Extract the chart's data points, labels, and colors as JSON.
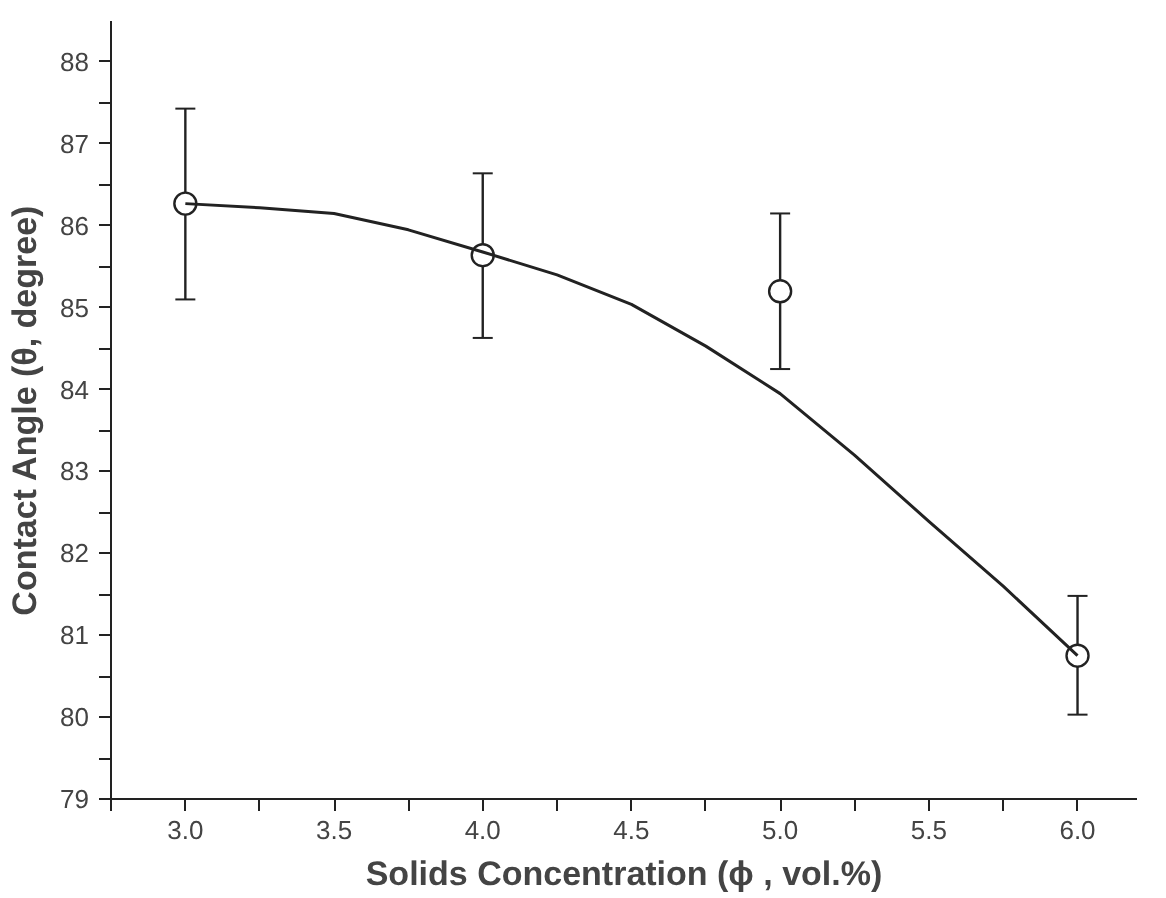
{
  "chart_data": {
    "type": "scatter",
    "xlabel": "Solids Concentration (ϕ , vol.%)",
    "ylabel": "Contact Angle (θ, degree)",
    "xlim": [
      2.75,
      6.2
    ],
    "ylim": [
      79,
      88.5
    ],
    "xticks": [
      {
        "value": 2.75,
        "label": null
      },
      {
        "value": 3,
        "label": "3.0"
      },
      {
        "value": 3.25,
        "label": null
      },
      3.5,
      {
        "value": 3.75,
        "label": null
      },
      {
        "value": 4,
        "label": "4.0"
      },
      {
        "value": 4.25,
        "label": null
      },
      4.5,
      {
        "value": 4.75,
        "label": null
      },
      {
        "value": 5,
        "label": "5.0"
      },
      {
        "value": 5.25,
        "label": null
      },
      5.5,
      {
        "value": 5.75,
        "label": null
      },
      {
        "value": 6,
        "label": "6.0"
      }
    ],
    "yticks": [
      79,
      {
        "value": 79.5,
        "label": null
      },
      80,
      {
        "value": 80.5,
        "label": null
      },
      81,
      {
        "value": 81.5,
        "label": null
      },
      82,
      {
        "value": 82.5,
        "label": null
      },
      83,
      {
        "value": 83.5,
        "label": null
      },
      84,
      {
        "value": 84.5,
        "label": null
      },
      85,
      {
        "value": 85.5,
        "label": null
      },
      86,
      {
        "value": 86.5,
        "label": null
      },
      87,
      {
        "value": 87.5,
        "label": null
      },
      88
    ],
    "grid": false,
    "series": [
      {
        "marker": "circle",
        "color": "#222222",
        "x": [
          3.0,
          4.0,
          5.0,
          6.0
        ],
        "values": [
          86.27,
          85.64,
          85.2,
          80.75
        ],
        "errors": [
          [
            85.1,
            87.43
          ],
          [
            84.63,
            86.64
          ],
          [
            84.25,
            86.15
          ],
          [
            80.03,
            81.48
          ]
        ]
      },
      {
        "type": "line",
        "line_style": "solid",
        "color": "#222222",
        "x": [
          3.0,
          3.25,
          3.5,
          3.75,
          4.0,
          4.25,
          4.5,
          4.75,
          5.0,
          5.25,
          5.5,
          5.75,
          6.0
        ],
        "values": [
          86.27,
          86.22,
          86.15,
          85.95,
          85.68,
          85.4,
          85.04,
          84.53,
          83.95,
          83.2,
          82.39,
          81.6,
          80.75
        ]
      }
    ]
  }
}
